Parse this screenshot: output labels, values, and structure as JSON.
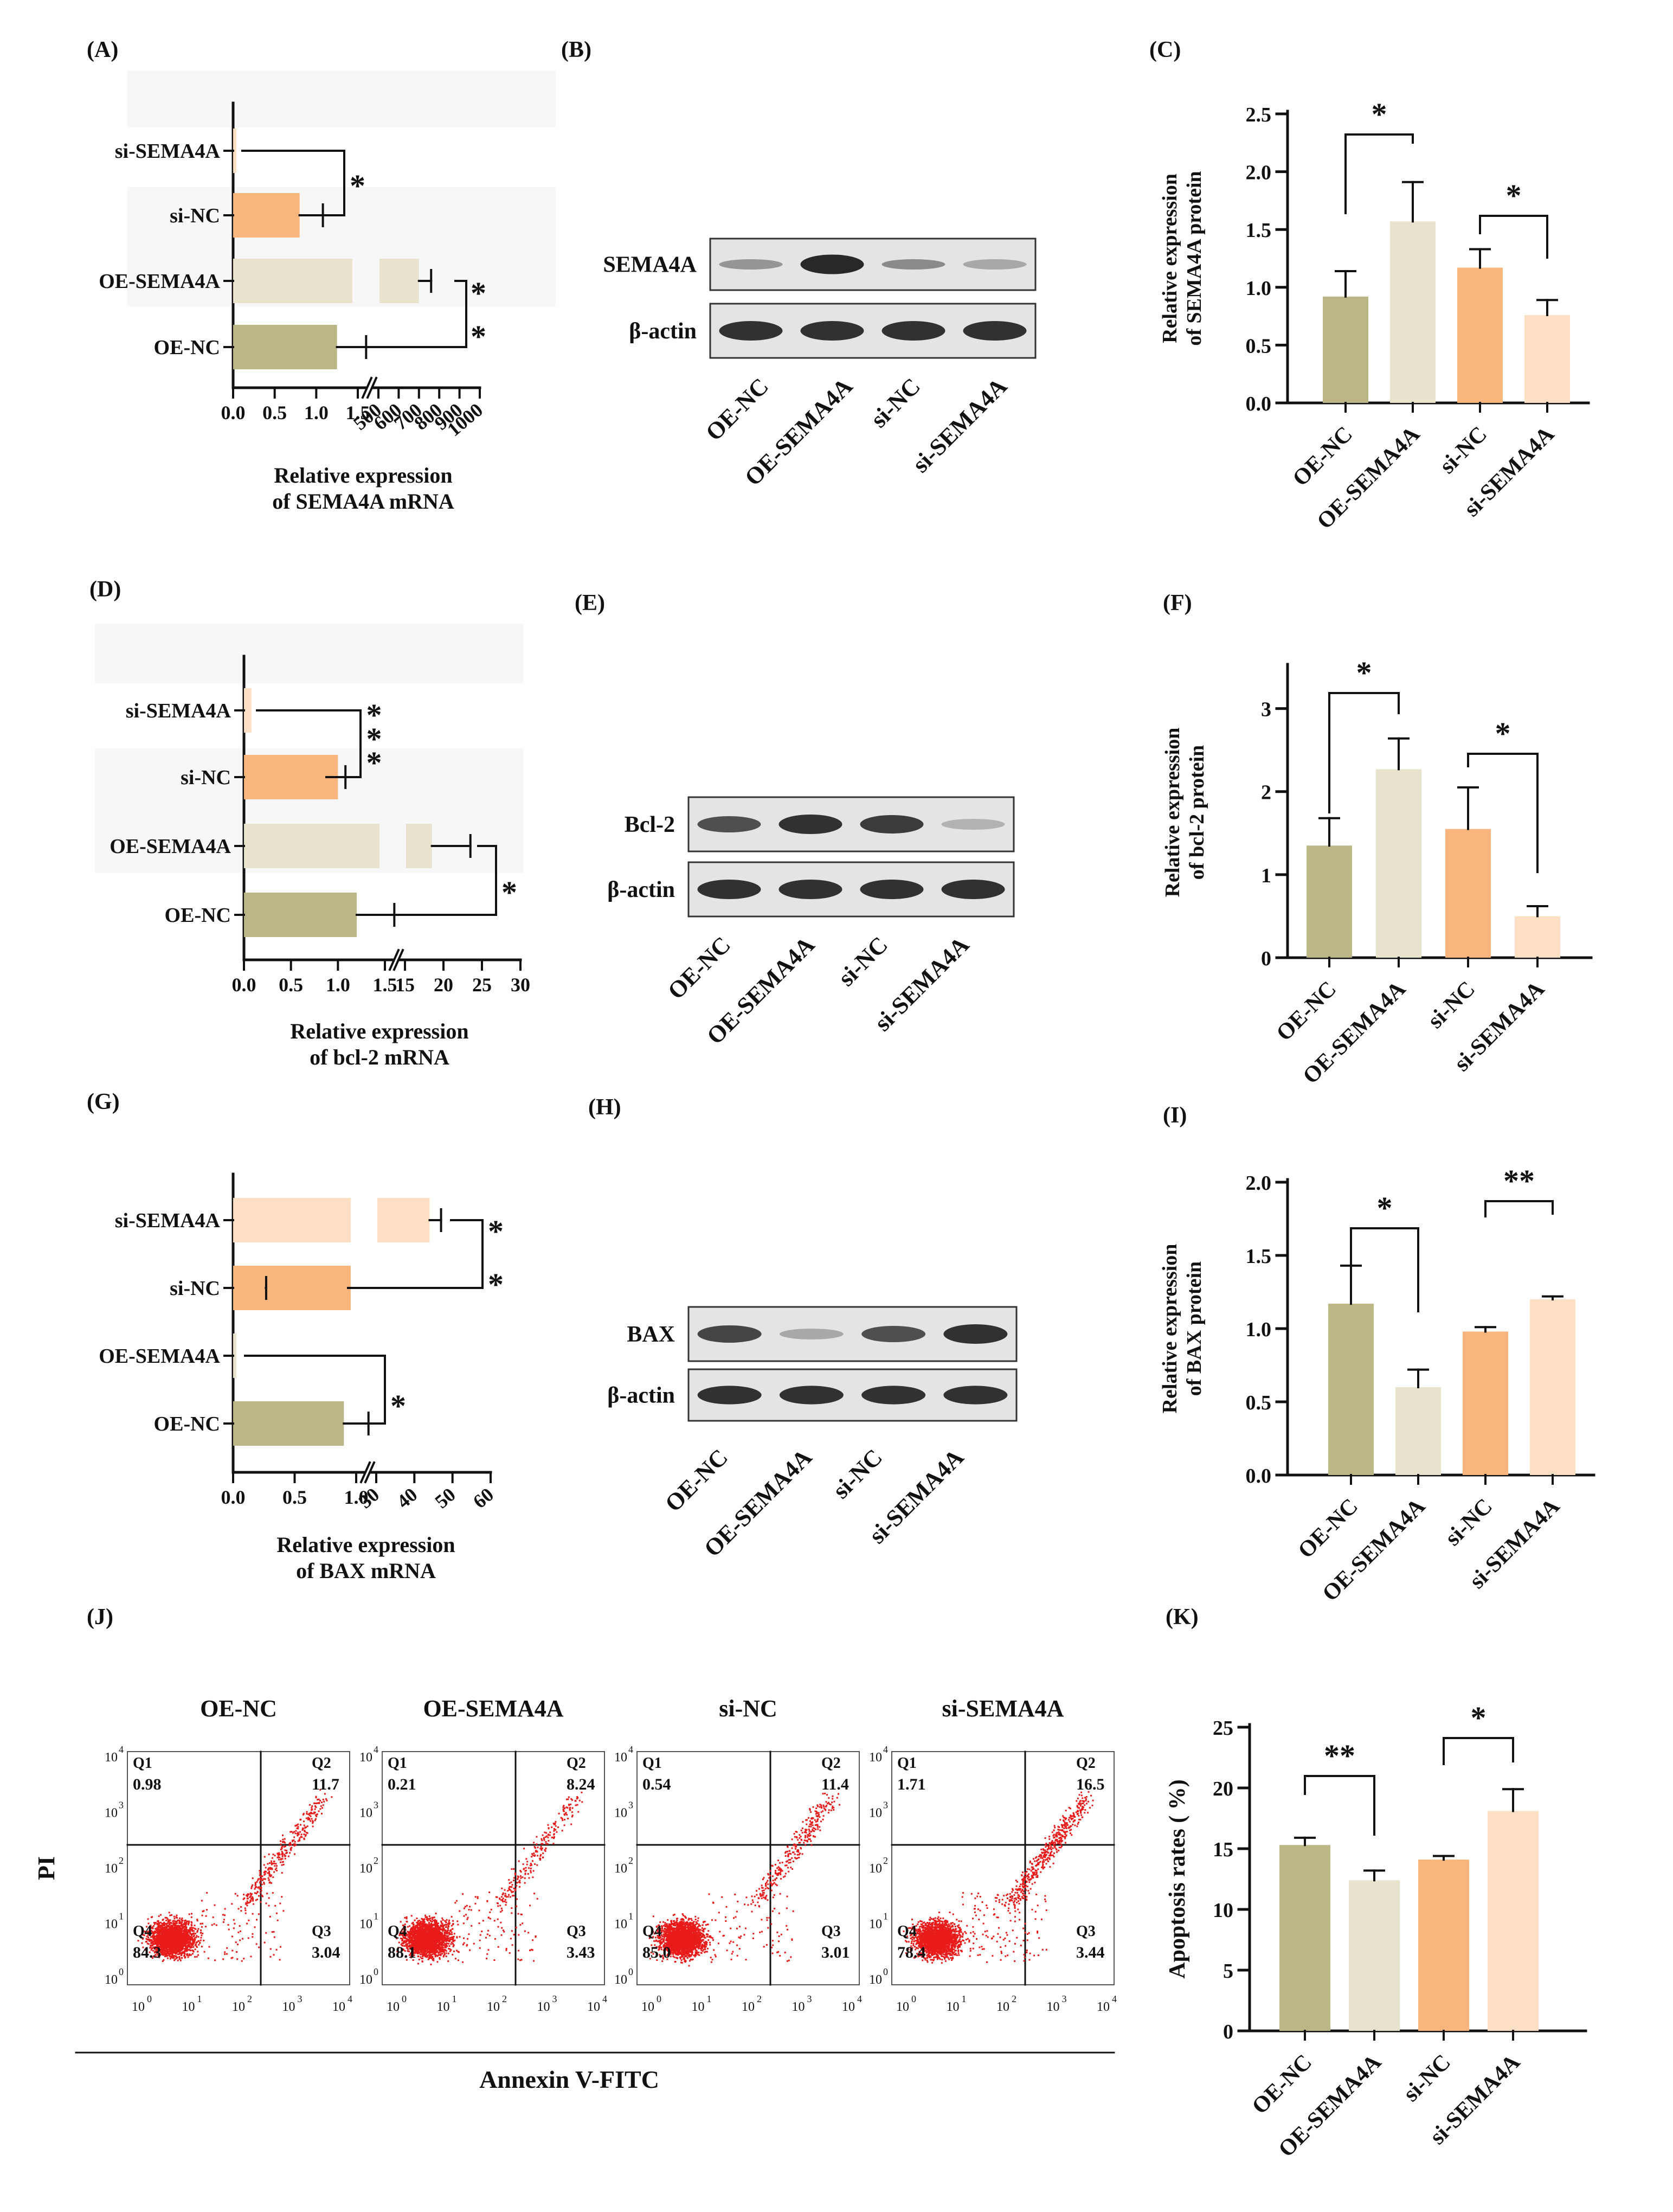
{
  "colors": {
    "oe_nc": "#bcb585",
    "oe_sema4a": "#e7e3cd",
    "si_nc": "#f8b57c",
    "si_sema4a": "#fde0c3",
    "dots": "#e81b1b",
    "blot": "#1d1d1d"
  },
  "panels": {
    "A": "(A)",
    "B": "(B)",
    "C": "(C)",
    "D": "(D)",
    "E": "(E)",
    "F": "(F)",
    "G": "(G)",
    "H": "(H)",
    "I": "(I)",
    "J": "(J)",
    "K": "(K)"
  },
  "groups": [
    "OE-NC",
    "OE-SEMA4A",
    "si-NC",
    "si-SEMA4A"
  ],
  "chart_data": [
    {
      "id": "A",
      "type": "bar",
      "orientation": "horizontal",
      "broken_axis": true,
      "categories": [
        "si-SEMA4A",
        "si-NC",
        "OE-SEMA4A",
        "OE-NC"
      ],
      "values": [
        0.02,
        0.8,
        700,
        1.25
      ],
      "errors": [
        0,
        0.28,
        60,
        0.35
      ],
      "xlabel_line1": "Relative expression",
      "xlabel_line2": "of SEMA4A mRNA",
      "ticks_low": [
        "0.0",
        "0.5",
        "1.0",
        "1.5"
      ],
      "ticks_high": [
        "500",
        "600",
        "700",
        "800",
        "900",
        "1000"
      ],
      "significance": [
        "*",
        "*",
        "*"
      ]
    },
    {
      "id": "B",
      "type": "table",
      "kind": "western-blot",
      "rows": [
        "SEMA4A",
        "β-actin"
      ],
      "lanes": [
        "OE-NC",
        "OE-SEMA4A",
        "si-NC",
        "si-SEMA4A"
      ]
    },
    {
      "id": "C",
      "type": "bar",
      "categories": [
        "OE-NC",
        "OE-SEMA4A",
        "si-NC",
        "si-SEMA4A"
      ],
      "values": [
        0.92,
        1.57,
        1.17,
        0.76
      ],
      "errors": [
        0.22,
        0.34,
        0.16,
        0.13
      ],
      "ylabel_line1": "Relative expression",
      "ylabel_line2": "of SEMA4A protein",
      "ylim": [
        0,
        2.5
      ],
      "yticks": [
        "0.0",
        "0.5",
        "1.0",
        "1.5",
        "2.0",
        "2.5"
      ],
      "significance": [
        "*",
        "*"
      ]
    },
    {
      "id": "D",
      "type": "bar",
      "orientation": "horizontal",
      "broken_axis": true,
      "categories": [
        "si-SEMA4A",
        "si-NC",
        "OE-SEMA4A",
        "OE-NC"
      ],
      "values": [
        0.08,
        1.0,
        18.5,
        1.2
      ],
      "errors": [
        0,
        0.08,
        5.0,
        0.4
      ],
      "xlabel_line1": "Relative expression",
      "xlabel_line2": "of bcl-2 mRNA",
      "ticks_low": [
        "0.0",
        "0.5",
        "1.0",
        "1.5"
      ],
      "ticks_high": [
        "15",
        "20",
        "25",
        "30"
      ],
      "significance": [
        "***",
        "*"
      ]
    },
    {
      "id": "E",
      "type": "table",
      "kind": "western-blot",
      "rows": [
        "Bcl-2",
        "β-actin"
      ],
      "lanes": [
        "OE-NC",
        "OE-SEMA4A",
        "si-NC",
        "si-SEMA4A"
      ]
    },
    {
      "id": "F",
      "type": "bar",
      "categories": [
        "OE-NC",
        "OE-SEMA4A",
        "si-NC",
        "si-SEMA4A"
      ],
      "values": [
        1.35,
        2.27,
        1.55,
        0.5
      ],
      "errors": [
        0.33,
        0.37,
        0.5,
        0.12
      ],
      "ylabel_line1": "Relative expression",
      "ylabel_line2": "of bcl-2  protein",
      "ylim": [
        0,
        3.5
      ],
      "yticks": [
        "0",
        "1",
        "2",
        "3"
      ],
      "significance": [
        "*",
        "*"
      ]
    },
    {
      "id": "G",
      "type": "bar",
      "orientation": "horizontal",
      "broken_axis": true,
      "categories": [
        "si-SEMA4A",
        "si-NC",
        "OE-SEMA4A",
        "OE-NC"
      ],
      "values": [
        44,
        1.05,
        0.01,
        0.9
      ],
      "errors": [
        3,
        0.08,
        0,
        0.2
      ],
      "xlabel_line1": "Relative expression",
      "xlabel_line2": "of BAX mRNA",
      "ticks_low": [
        "0.0",
        "0.5",
        "1.0"
      ],
      "ticks_high": [
        "30",
        "40",
        "50",
        "60"
      ],
      "significance": [
        "*",
        "*",
        "*"
      ]
    },
    {
      "id": "H",
      "type": "table",
      "kind": "western-blot",
      "rows": [
        "BAX",
        "β-actin"
      ],
      "lanes": [
        "OE-NC",
        "OE-SEMA4A",
        "si-NC",
        "si-SEMA4A"
      ]
    },
    {
      "id": "I",
      "type": "bar",
      "categories": [
        "OE-NC",
        "OE-SEMA4A",
        "si-NC",
        "si-SEMA4A"
      ],
      "values": [
        1.17,
        0.6,
        0.98,
        1.2
      ],
      "errors": [
        0.26,
        0.12,
        0.03,
        0.02
      ],
      "ylabel_line1": "Relative expression",
      "ylabel_line2": "of BAX protein",
      "ylim": [
        0,
        2.0
      ],
      "yticks": [
        "0.0",
        "0.5",
        "1.0",
        "1.5",
        "2.0"
      ],
      "significance": [
        "*",
        "**"
      ]
    },
    {
      "id": "J",
      "type": "scatter",
      "kind": "flow-cytometry",
      "samples": [
        {
          "name": "OE-NC",
          "Q1": "0.98",
          "Q2": "11.7",
          "Q3": "3.04",
          "Q4": "84.3"
        },
        {
          "name": "OE-SEMA4A",
          "Q1": "0.21",
          "Q2": "8.24",
          "Q3": "3.43",
          "Q4": "88.1"
        },
        {
          "name": "si-NC",
          "Q1": "0.54",
          "Q2": "11.4",
          "Q3": "3.01",
          "Q4": "85.0"
        },
        {
          "name": "si-SEMA4A",
          "Q1": "1.71",
          "Q2": "16.5",
          "Q3": "3.44",
          "Q4": "78.4"
        }
      ],
      "quadrant_labels": [
        "Q1",
        "Q2",
        "Q3",
        "Q4"
      ],
      "xlabel": "Annexin V-FITC",
      "ylabel": "PI",
      "decades": [
        "10",
        "10",
        "10",
        "10",
        "10"
      ],
      "exponents": [
        "0",
        "1",
        "2",
        "3",
        "4"
      ]
    },
    {
      "id": "K",
      "type": "bar",
      "categories": [
        "OE-NC",
        "OE-SEMA4A",
        "si-NC",
        "si-SEMA4A"
      ],
      "values": [
        15.3,
        12.4,
        14.1,
        18.1
      ],
      "errors": [
        0.6,
        0.8,
        0.3,
        1.8
      ],
      "ylabel": "Apoptosis rates ( %)",
      "ylim": [
        0,
        25
      ],
      "yticks": [
        "0",
        "5",
        "10",
        "15",
        "20",
        "25"
      ],
      "significance": [
        "**",
        "*"
      ]
    }
  ]
}
